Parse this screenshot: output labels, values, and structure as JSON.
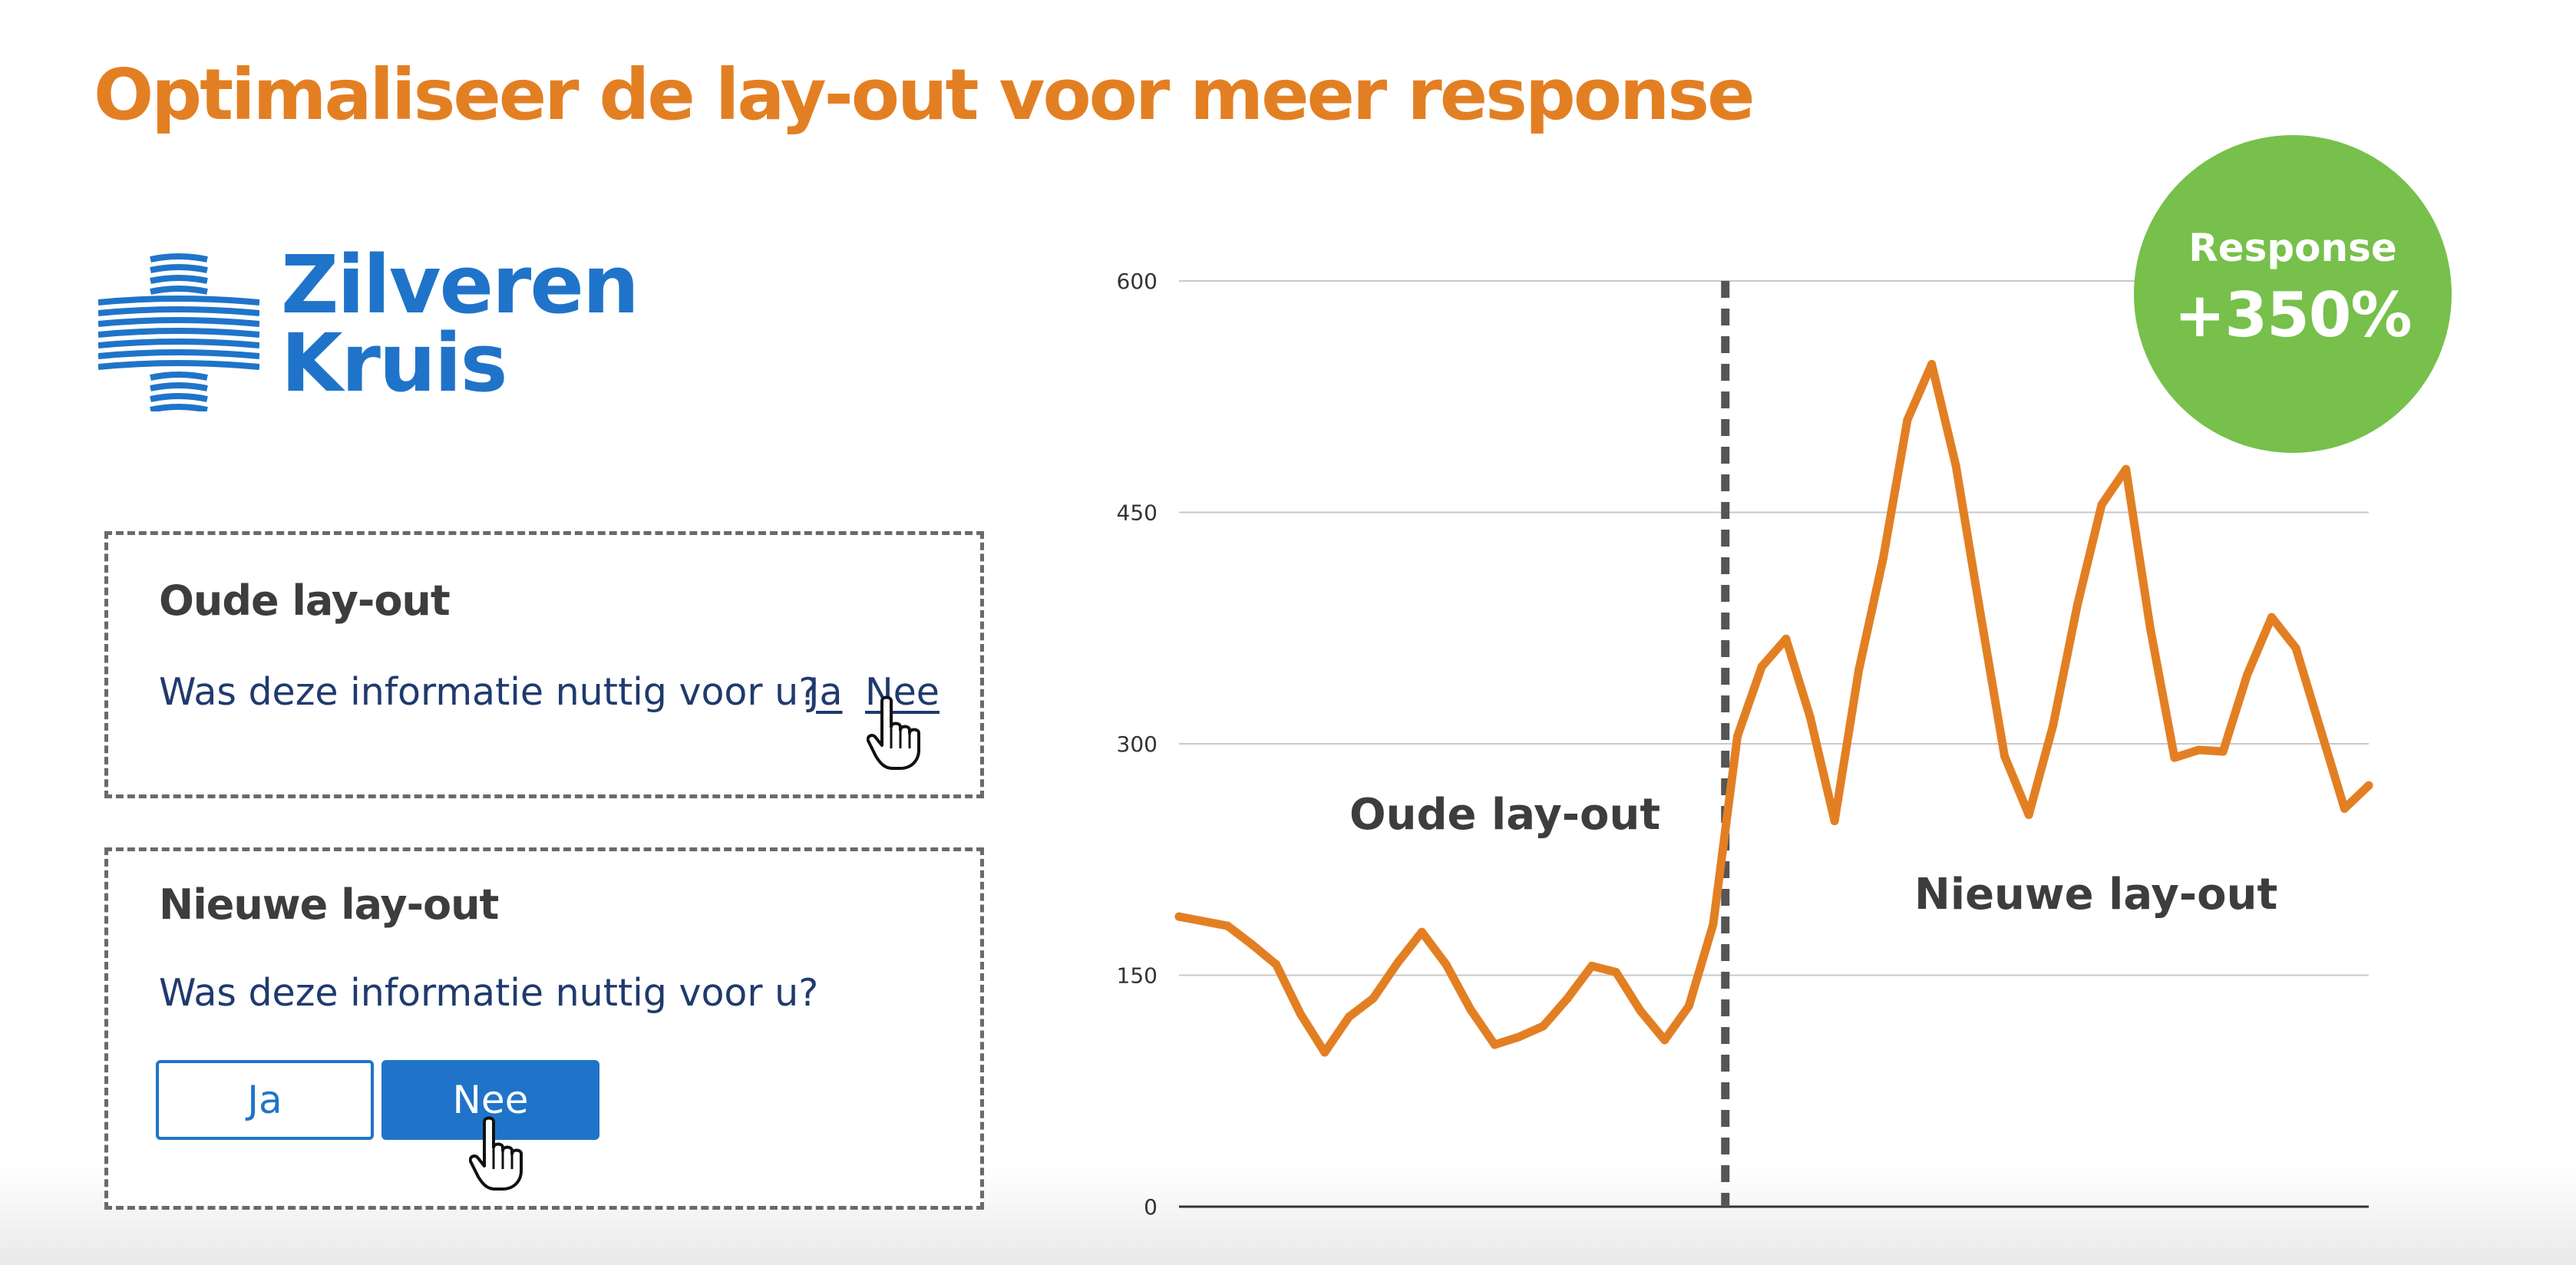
{
  "title": "Optimaliseer de lay-out voor meer response",
  "logo": {
    "line1": "Zilveren",
    "line2": "Kruis",
    "color": "#1f74c9"
  },
  "old_layout": {
    "heading": "Oude lay-out",
    "question": "Was deze informatie nuttig voor u?",
    "yes_link": "Ja",
    "no_link": "Nee"
  },
  "new_layout": {
    "heading": "Nieuwe lay-out",
    "question": "Was deze informatie nuttig voor u?",
    "yes_button": "Ja",
    "no_button": "Nee"
  },
  "badge": {
    "label": "Response",
    "value": "+350%",
    "color": "#76c04b"
  },
  "colors": {
    "accent": "#e37f23",
    "brand_blue": "#1f74c9",
    "badge_green": "#76c04b"
  },
  "chart_data": {
    "type": "line",
    "title": "",
    "xlabel": "",
    "ylabel": "",
    "ylim": [
      0,
      600
    ],
    "yticks": [
      0,
      150,
      300,
      450,
      600
    ],
    "grid": true,
    "x": [
      1,
      2,
      3,
      4,
      5,
      6,
      7,
      8,
      9,
      10,
      11,
      12,
      13,
      14,
      15,
      16,
      17,
      18,
      19,
      20,
      21,
      22,
      23,
      24,
      25,
      26,
      27,
      28,
      29,
      30,
      31,
      32,
      33,
      34,
      35,
      36,
      37,
      38,
      39,
      40,
      41,
      42,
      43,
      44,
      45,
      46,
      47,
      48,
      49,
      50
    ],
    "series": [
      {
        "color": "#e37f23",
        "values": [
          188,
          185,
          182,
          170,
          157,
          125,
          100,
          123,
          135,
          158,
          178,
          157,
          128,
          105,
          110,
          117,
          135,
          156,
          152,
          127,
          108,
          130,
          183,
          305,
          350,
          368,
          317,
          250,
          348,
          420,
          510,
          546,
          480,
          385,
          292,
          254,
          312,
          390,
          455,
          478,
          375,
          291,
          296,
          295,
          345,
          382,
          362,
          310,
          258,
          273
        ]
      }
    ],
    "divider_after_x": 23.5,
    "annotations": [
      "Oude lay-out",
      "Nieuwe lay-out"
    ]
  }
}
